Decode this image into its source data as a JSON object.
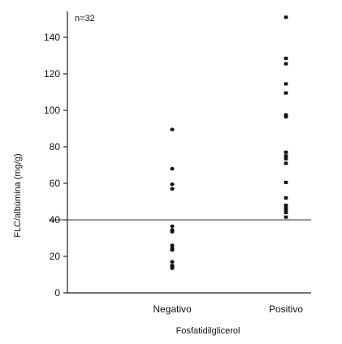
{
  "chart_data": {
    "type": "scatter",
    "annotation": "n=32",
    "xlabel": "Fosfatidilglicerol",
    "ylabel": "FLC/albúmina (mg/g)",
    "categories": [
      "Negativo",
      "Positivo"
    ],
    "ylim": [
      0,
      150
    ],
    "yticks": [
      "0",
      "20",
      "40",
      "60",
      "80",
      "100",
      "120",
      "140"
    ],
    "reference_line_y": 40,
    "series": [
      {
        "category": "Negativo",
        "marker": "circle",
        "values": [
          89.5,
          68,
          59.5,
          57,
          36.5,
          34.5,
          33.5,
          26,
          24.5,
          23.5,
          17,
          15,
          14.5,
          13.5
        ]
      },
      {
        "category": "Positivo",
        "marker": "square",
        "values": [
          151,
          128.5,
          125.5,
          114.5,
          109.5,
          97.5,
          96.5,
          77,
          75,
          73.5,
          71,
          60.5,
          52,
          48,
          46.5,
          45.5,
          44,
          41.5
        ]
      }
    ],
    "grid": false,
    "legend": "none",
    "colors": {
      "points": "#111111",
      "axis": "#222222"
    }
  }
}
